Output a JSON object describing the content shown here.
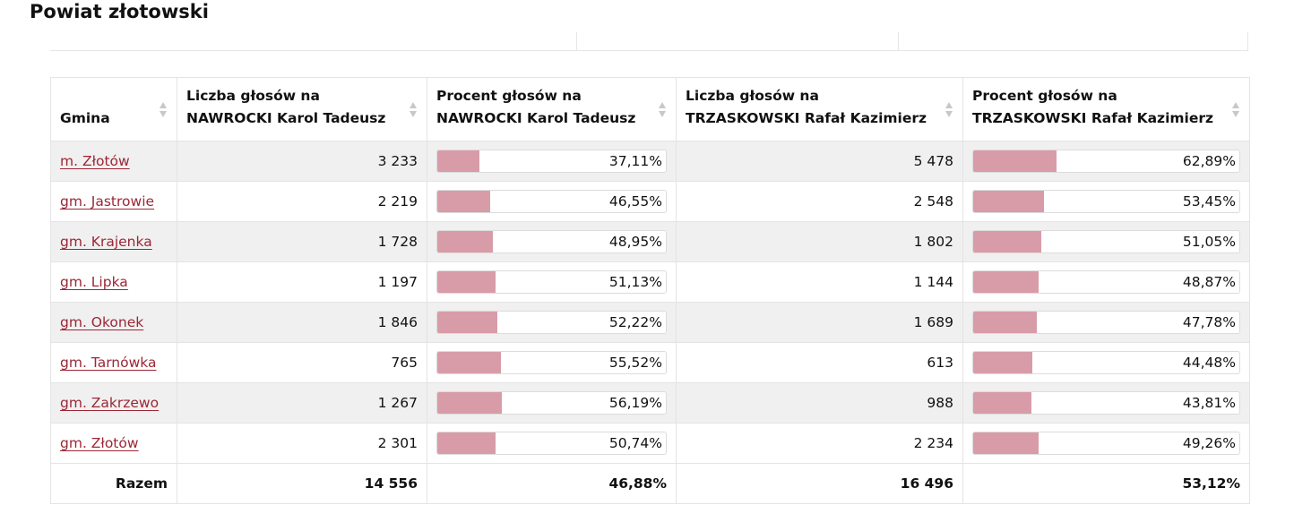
{
  "page": {
    "title": "Powiat złotowski"
  },
  "colors": {
    "bar_fill": "#d89ca8",
    "link": "#9c2636",
    "row_alt": "#f0f0f0"
  },
  "table": {
    "headers": [
      {
        "line1": "Gmina",
        "line2": ""
      },
      {
        "line1": "Liczba głosów na",
        "line2": "NAWROCKI Karol Tadeusz"
      },
      {
        "line1": "Procent głosów na",
        "line2": "NAWROCKI Karol Tadeusz"
      },
      {
        "line1": "Liczba głosów na",
        "line2": "TRZASKOWSKI Rafał Kazimierz"
      },
      {
        "line1": "Procent głosów na",
        "line2": "TRZASKOWSKI Rafał Kazimierz"
      }
    ],
    "sort_icon": "sort-icon",
    "rows": [
      {
        "gmina": "m. Złotów",
        "nawrocki_votes": "3 233",
        "nawrocki_pct": "37,11%",
        "nawrocki_share": 37.11,
        "trzaskowski_votes": "5 478",
        "trzaskowski_pct": "62,89%",
        "trzaskowski_share": 62.89
      },
      {
        "gmina": "gm. Jastrowie",
        "nawrocki_votes": "2 219",
        "nawrocki_pct": "46,55%",
        "nawrocki_share": 46.55,
        "trzaskowski_votes": "2 548",
        "trzaskowski_pct": "53,45%",
        "trzaskowski_share": 53.45
      },
      {
        "gmina": "gm. Krajenka",
        "nawrocki_votes": "1 728",
        "nawrocki_pct": "48,95%",
        "nawrocki_share": 48.95,
        "trzaskowski_votes": "1 802",
        "trzaskowski_pct": "51,05%",
        "trzaskowski_share": 51.05
      },
      {
        "gmina": "gm. Lipka",
        "nawrocki_votes": "1 197",
        "nawrocki_pct": "51,13%",
        "nawrocki_share": 51.13,
        "trzaskowski_votes": "1 144",
        "trzaskowski_pct": "48,87%",
        "trzaskowski_share": 48.87
      },
      {
        "gmina": "gm. Okonek",
        "nawrocki_votes": "1 846",
        "nawrocki_pct": "52,22%",
        "nawrocki_share": 52.22,
        "trzaskowski_votes": "1 689",
        "trzaskowski_pct": "47,78%",
        "trzaskowski_share": 47.78
      },
      {
        "gmina": "gm. Tarnówka",
        "nawrocki_votes": "765",
        "nawrocki_pct": "55,52%",
        "nawrocki_share": 55.52,
        "trzaskowski_votes": "613",
        "trzaskowski_pct": "44,48%",
        "trzaskowski_share": 44.48
      },
      {
        "gmina": "gm. Zakrzewo",
        "nawrocki_votes": "1 267",
        "nawrocki_pct": "56,19%",
        "nawrocki_share": 56.19,
        "trzaskowski_votes": "988",
        "trzaskowski_pct": "43,81%",
        "trzaskowski_share": 43.81
      },
      {
        "gmina": "gm. Złotów",
        "nawrocki_votes": "2 301",
        "nawrocki_pct": "50,74%",
        "nawrocki_share": 50.74,
        "trzaskowski_votes": "2 234",
        "trzaskowski_pct": "49,26%",
        "trzaskowski_share": 49.26
      }
    ],
    "footer": {
      "label": "Razem",
      "nawrocki_votes": "14 556",
      "nawrocki_pct": "46,88%",
      "trzaskowski_votes": "16 496",
      "trzaskowski_pct": "53,12%"
    }
  }
}
